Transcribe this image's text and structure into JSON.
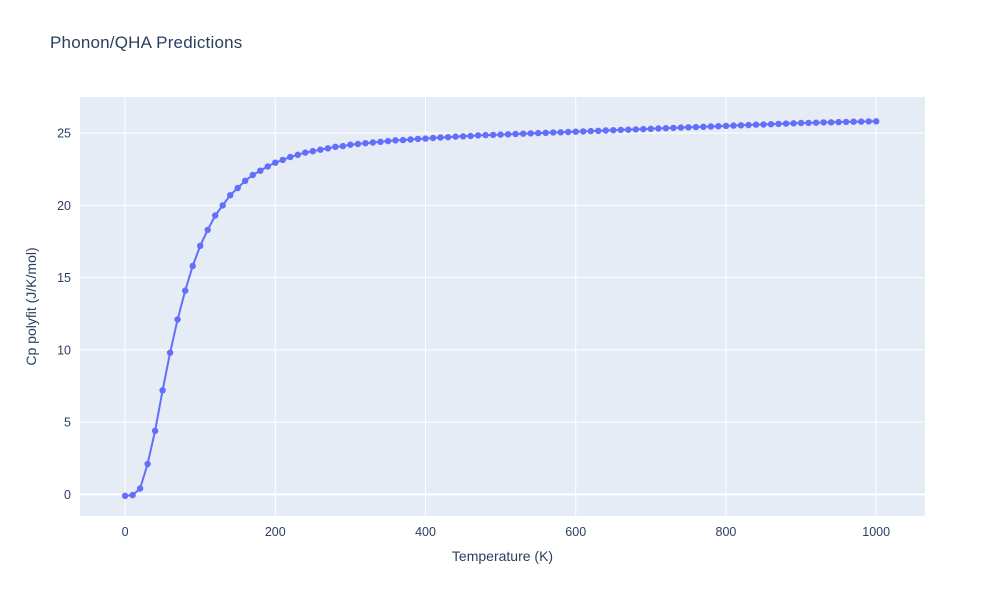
{
  "colors": {
    "paper_bg": "#ffffff",
    "plot_bg": "#e5ecf6",
    "grid": "#ffffff",
    "line": "#636efa",
    "text": "#2a3f5f",
    "tick_text": "#2a3f5f"
  },
  "chart_data": {
    "type": "line",
    "title": "Phonon/QHA Predictions",
    "xlabel": "Temperature (K)",
    "ylabel": "Cp polyfit (J/K/mol)",
    "xlim": [
      -60,
      1065
    ],
    "ylim": [
      -1.5,
      27.5
    ],
    "xticks": [
      0,
      200,
      400,
      600,
      800,
      1000
    ],
    "yticks": [
      0,
      5,
      10,
      15,
      20,
      25
    ],
    "grid": true,
    "legend": false,
    "markers": true,
    "x": [
      0,
      10,
      20,
      30,
      40,
      50,
      60,
      70,
      80,
      90,
      100,
      110,
      120,
      130,
      140,
      150,
      160,
      170,
      180,
      190,
      200,
      210,
      220,
      230,
      240,
      250,
      260,
      270,
      280,
      290,
      300,
      310,
      320,
      330,
      340,
      350,
      360,
      370,
      380,
      390,
      400,
      410,
      420,
      430,
      440,
      450,
      460,
      470,
      480,
      490,
      500,
      510,
      520,
      530,
      540,
      550,
      560,
      570,
      580,
      590,
      600,
      610,
      620,
      630,
      640,
      650,
      660,
      670,
      680,
      690,
      700,
      710,
      720,
      730,
      740,
      750,
      760,
      770,
      780,
      790,
      800,
      810,
      820,
      830,
      840,
      850,
      860,
      870,
      880,
      890,
      900,
      910,
      920,
      930,
      940,
      950,
      960,
      970,
      980,
      990,
      1000
    ],
    "y": [
      -0.1,
      -0.05,
      0.4,
      2.1,
      4.4,
      7.2,
      9.8,
      12.1,
      14.1,
      15.8,
      17.2,
      18.3,
      19.3,
      20.0,
      20.7,
      21.2,
      21.7,
      22.1,
      22.4,
      22.7,
      22.95,
      23.15,
      23.35,
      23.5,
      23.65,
      23.75,
      23.85,
      23.95,
      24.05,
      24.1,
      24.2,
      24.25,
      24.3,
      24.35,
      24.4,
      24.45,
      24.5,
      24.52,
      24.56,
      24.6,
      24.62,
      24.66,
      24.7,
      24.72,
      24.76,
      24.78,
      24.8,
      24.84,
      24.86,
      24.88,
      24.9,
      24.92,
      24.94,
      24.96,
      24.98,
      25.0,
      25.02,
      25.04,
      25.06,
      25.08,
      25.1,
      25.12,
      25.14,
      25.16,
      25.18,
      25.2,
      25.22,
      25.24,
      25.26,
      25.28,
      25.3,
      25.32,
      25.34,
      25.36,
      25.38,
      25.4,
      25.42,
      25.44,
      25.46,
      25.48,
      25.5,
      25.52,
      25.54,
      25.56,
      25.58,
      25.6,
      25.62,
      25.64,
      25.66,
      25.68,
      25.7,
      25.71,
      25.72,
      25.74,
      25.75,
      25.76,
      25.78,
      25.79,
      25.8,
      25.81,
      25.82
    ]
  }
}
